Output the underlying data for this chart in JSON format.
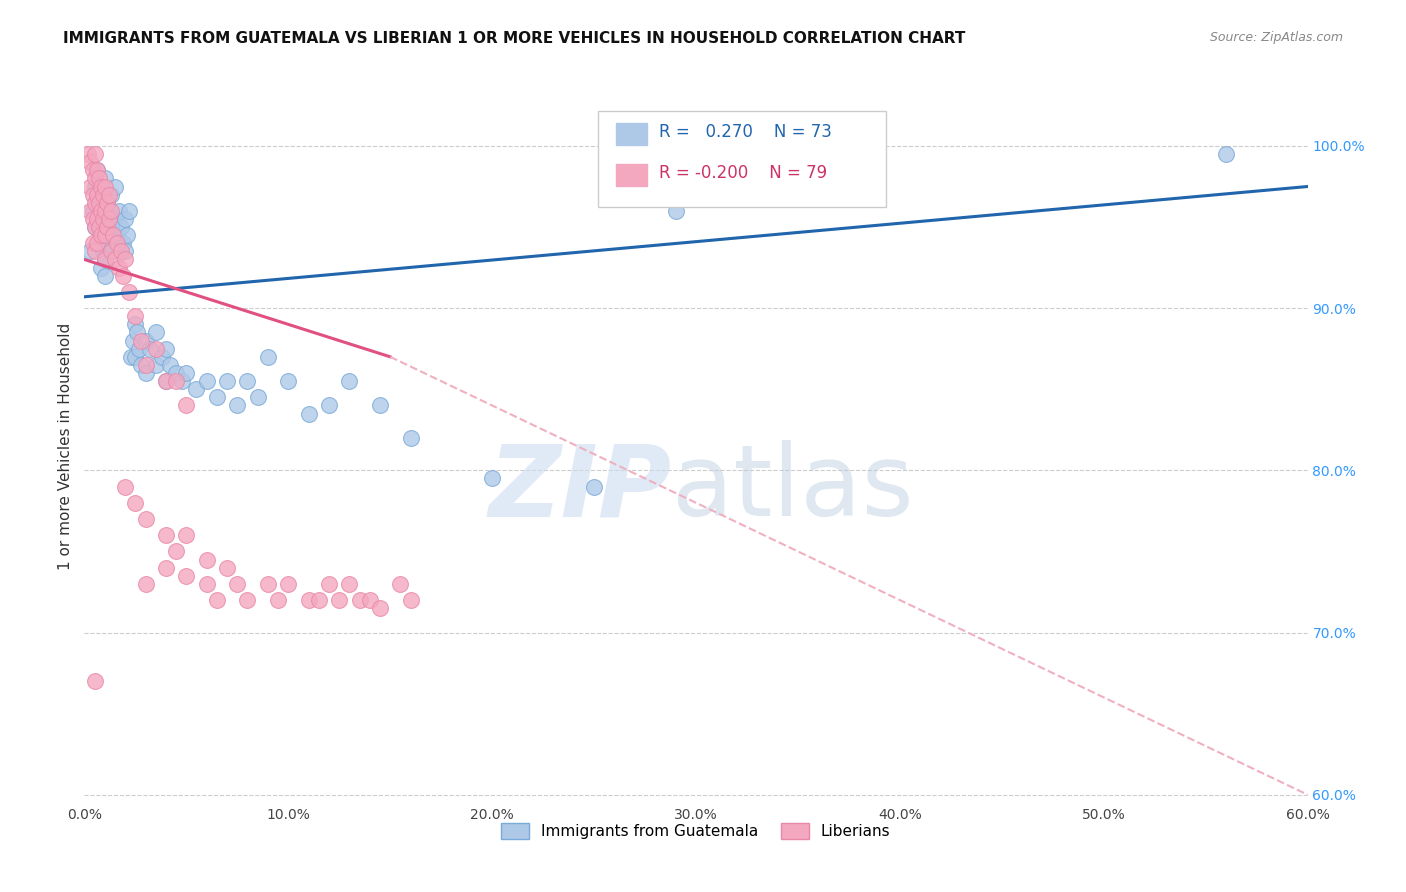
{
  "title": "IMMIGRANTS FROM GUATEMALA VS LIBERIAN 1 OR MORE VEHICLES IN HOUSEHOLD CORRELATION CHART",
  "source": "Source: ZipAtlas.com",
  "ylabel": "1 or more Vehicles in Household",
  "yticks": [
    "60.0%",
    "70.0%",
    "80.0%",
    "90.0%",
    "100.0%"
  ],
  "ytick_values": [
    0.6,
    0.7,
    0.8,
    0.9,
    1.0
  ],
  "xtick_values": [
    0.0,
    0.1,
    0.2,
    0.3,
    0.4,
    0.5,
    0.6
  ],
  "xmin": 0.0,
  "xmax": 0.6,
  "ymin": 0.595,
  "ymax": 1.035,
  "legend_guatemala": "Immigrants from Guatemala",
  "legend_liberian": "Liberians",
  "R_guatemala": 0.27,
  "N_guatemala": 73,
  "R_liberian": -0.2,
  "N_liberian": 79,
  "color_blue": "#aec8e8",
  "color_pink": "#f4a8c0",
  "color_blue_line": "#2166ac",
  "color_pink_line": "#e05080",
  "color_pink_dashed": "#f0b0c0",
  "scatter_blue": [
    [
      0.003,
      0.935
    ],
    [
      0.004,
      0.96
    ],
    [
      0.005,
      0.975
    ],
    [
      0.005,
      0.95
    ],
    [
      0.006,
      0.985
    ],
    [
      0.006,
      0.965
    ],
    [
      0.007,
      0.97
    ],
    [
      0.007,
      0.95
    ],
    [
      0.008,
      0.94
    ],
    [
      0.008,
      0.925
    ],
    [
      0.009,
      0.96
    ],
    [
      0.009,
      0.935
    ],
    [
      0.01,
      0.98
    ],
    [
      0.01,
      0.955
    ],
    [
      0.01,
      0.93
    ],
    [
      0.01,
      0.92
    ],
    [
      0.011,
      0.965
    ],
    [
      0.011,
      0.945
    ],
    [
      0.012,
      0.96
    ],
    [
      0.012,
      0.94
    ],
    [
      0.013,
      0.97
    ],
    [
      0.013,
      0.95
    ],
    [
      0.014,
      0.955
    ],
    [
      0.014,
      0.935
    ],
    [
      0.015,
      0.975
    ],
    [
      0.015,
      0.955
    ],
    [
      0.016,
      0.945
    ],
    [
      0.017,
      0.96
    ],
    [
      0.018,
      0.95
    ],
    [
      0.019,
      0.94
    ],
    [
      0.02,
      0.955
    ],
    [
      0.02,
      0.935
    ],
    [
      0.021,
      0.945
    ],
    [
      0.022,
      0.96
    ],
    [
      0.023,
      0.87
    ],
    [
      0.024,
      0.88
    ],
    [
      0.025,
      0.89
    ],
    [
      0.025,
      0.87
    ],
    [
      0.026,
      0.885
    ],
    [
      0.027,
      0.875
    ],
    [
      0.028,
      0.865
    ],
    [
      0.03,
      0.88
    ],
    [
      0.03,
      0.86
    ],
    [
      0.032,
      0.875
    ],
    [
      0.035,
      0.885
    ],
    [
      0.035,
      0.865
    ],
    [
      0.038,
      0.87
    ],
    [
      0.04,
      0.875
    ],
    [
      0.04,
      0.855
    ],
    [
      0.042,
      0.865
    ],
    [
      0.045,
      0.86
    ],
    [
      0.048,
      0.855
    ],
    [
      0.05,
      0.86
    ],
    [
      0.055,
      0.85
    ],
    [
      0.06,
      0.855
    ],
    [
      0.065,
      0.845
    ],
    [
      0.07,
      0.855
    ],
    [
      0.075,
      0.84
    ],
    [
      0.08,
      0.855
    ],
    [
      0.085,
      0.845
    ],
    [
      0.09,
      0.87
    ],
    [
      0.1,
      0.855
    ],
    [
      0.11,
      0.835
    ],
    [
      0.12,
      0.84
    ],
    [
      0.13,
      0.855
    ],
    [
      0.145,
      0.84
    ],
    [
      0.16,
      0.82
    ],
    [
      0.2,
      0.795
    ],
    [
      0.25,
      0.79
    ],
    [
      0.29,
      0.96
    ],
    [
      0.34,
      0.97
    ],
    [
      0.38,
      0.975
    ],
    [
      0.56,
      0.995
    ]
  ],
  "scatter_pink": [
    [
      0.002,
      0.995
    ],
    [
      0.003,
      0.99
    ],
    [
      0.003,
      0.975
    ],
    [
      0.003,
      0.96
    ],
    [
      0.004,
      0.985
    ],
    [
      0.004,
      0.97
    ],
    [
      0.004,
      0.955
    ],
    [
      0.004,
      0.94
    ],
    [
      0.005,
      0.995
    ],
    [
      0.005,
      0.98
    ],
    [
      0.005,
      0.965
    ],
    [
      0.005,
      0.95
    ],
    [
      0.005,
      0.935
    ],
    [
      0.006,
      0.985
    ],
    [
      0.006,
      0.97
    ],
    [
      0.006,
      0.955
    ],
    [
      0.006,
      0.94
    ],
    [
      0.007,
      0.98
    ],
    [
      0.007,
      0.965
    ],
    [
      0.007,
      0.95
    ],
    [
      0.008,
      0.975
    ],
    [
      0.008,
      0.96
    ],
    [
      0.008,
      0.945
    ],
    [
      0.009,
      0.97
    ],
    [
      0.009,
      0.955
    ],
    [
      0.01,
      0.975
    ],
    [
      0.01,
      0.96
    ],
    [
      0.01,
      0.945
    ],
    [
      0.01,
      0.93
    ],
    [
      0.011,
      0.965
    ],
    [
      0.011,
      0.95
    ],
    [
      0.012,
      0.97
    ],
    [
      0.012,
      0.955
    ],
    [
      0.013,
      0.96
    ],
    [
      0.013,
      0.935
    ],
    [
      0.014,
      0.945
    ],
    [
      0.015,
      0.93
    ],
    [
      0.016,
      0.94
    ],
    [
      0.017,
      0.925
    ],
    [
      0.018,
      0.935
    ],
    [
      0.019,
      0.92
    ],
    [
      0.02,
      0.93
    ],
    [
      0.022,
      0.91
    ],
    [
      0.025,
      0.895
    ],
    [
      0.028,
      0.88
    ],
    [
      0.03,
      0.865
    ],
    [
      0.035,
      0.875
    ],
    [
      0.04,
      0.855
    ],
    [
      0.045,
      0.855
    ],
    [
      0.05,
      0.84
    ],
    [
      0.02,
      0.79
    ],
    [
      0.025,
      0.78
    ],
    [
      0.03,
      0.77
    ],
    [
      0.04,
      0.76
    ],
    [
      0.045,
      0.75
    ],
    [
      0.05,
      0.76
    ],
    [
      0.06,
      0.745
    ],
    [
      0.07,
      0.74
    ],
    [
      0.075,
      0.73
    ],
    [
      0.08,
      0.72
    ],
    [
      0.09,
      0.73
    ],
    [
      0.095,
      0.72
    ],
    [
      0.1,
      0.73
    ],
    [
      0.11,
      0.72
    ],
    [
      0.115,
      0.72
    ],
    [
      0.12,
      0.73
    ],
    [
      0.125,
      0.72
    ],
    [
      0.13,
      0.73
    ],
    [
      0.135,
      0.72
    ],
    [
      0.14,
      0.72
    ],
    [
      0.145,
      0.715
    ],
    [
      0.155,
      0.73
    ],
    [
      0.16,
      0.72
    ],
    [
      0.005,
      0.67
    ],
    [
      0.03,
      0.73
    ],
    [
      0.04,
      0.74
    ],
    [
      0.05,
      0.735
    ],
    [
      0.06,
      0.73
    ],
    [
      0.065,
      0.72
    ]
  ],
  "blue_line": [
    [
      0.0,
      0.907
    ],
    [
      0.6,
      0.975
    ]
  ],
  "pink_line_solid": [
    [
      0.0,
      0.93
    ],
    [
      0.15,
      0.87
    ]
  ],
  "pink_line_dashed": [
    [
      0.15,
      0.87
    ],
    [
      0.6,
      0.6
    ]
  ]
}
